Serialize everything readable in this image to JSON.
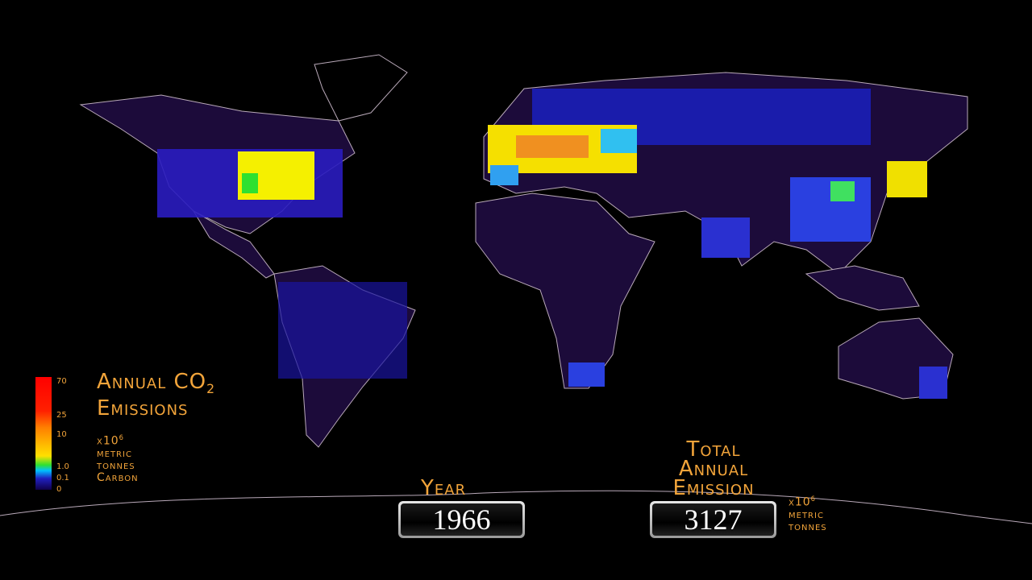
{
  "legend": {
    "title_line1": "Annual CO",
    "title_sub": "2",
    "title_line2": "Emissions",
    "unit_base": "x10",
    "unit_exp": "6",
    "unit_lines": [
      "metric",
      "tonnes",
      "Carbon"
    ],
    "ticks": [
      "70",
      "25",
      "10",
      "1.0",
      "0.1",
      "0"
    ]
  },
  "year": {
    "label": "Year",
    "value": "1966"
  },
  "total": {
    "label_lines": [
      "Total",
      "Annual",
      "Emission"
    ],
    "value": "3127",
    "unit_base": "x10",
    "unit_exp": "6",
    "unit_lines": [
      "metric",
      "tonnes"
    ]
  }
}
